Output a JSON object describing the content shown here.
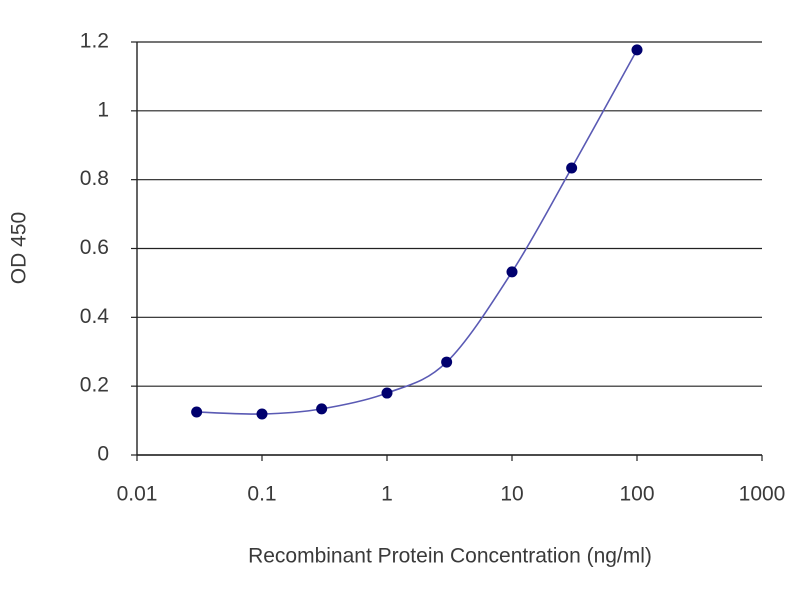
{
  "chart_data": {
    "type": "scatter-line",
    "x_label": "Recombinant Protein Concentration (ng/ml)",
    "y_label": "OD 450",
    "x": [
      0.03,
      0.1,
      0.3,
      1,
      3,
      10,
      30,
      100
    ],
    "series": [
      {
        "color": "#00006e",
        "line_color": "#5a5ab4",
        "values": [
          0.125,
          0.119,
          0.134,
          0.18,
          0.27,
          0.532,
          0.834,
          1.177
        ]
      }
    ],
    "xscale": "log",
    "xlim": [
      0.01,
      1000
    ],
    "xticks": [
      0.01,
      0.1,
      1,
      10,
      100,
      1000
    ],
    "ylim": [
      0,
      1.2
    ],
    "yticks": [
      0,
      0.2,
      0.4,
      0.6,
      0.8,
      1,
      1.2
    ],
    "grid": true
  }
}
